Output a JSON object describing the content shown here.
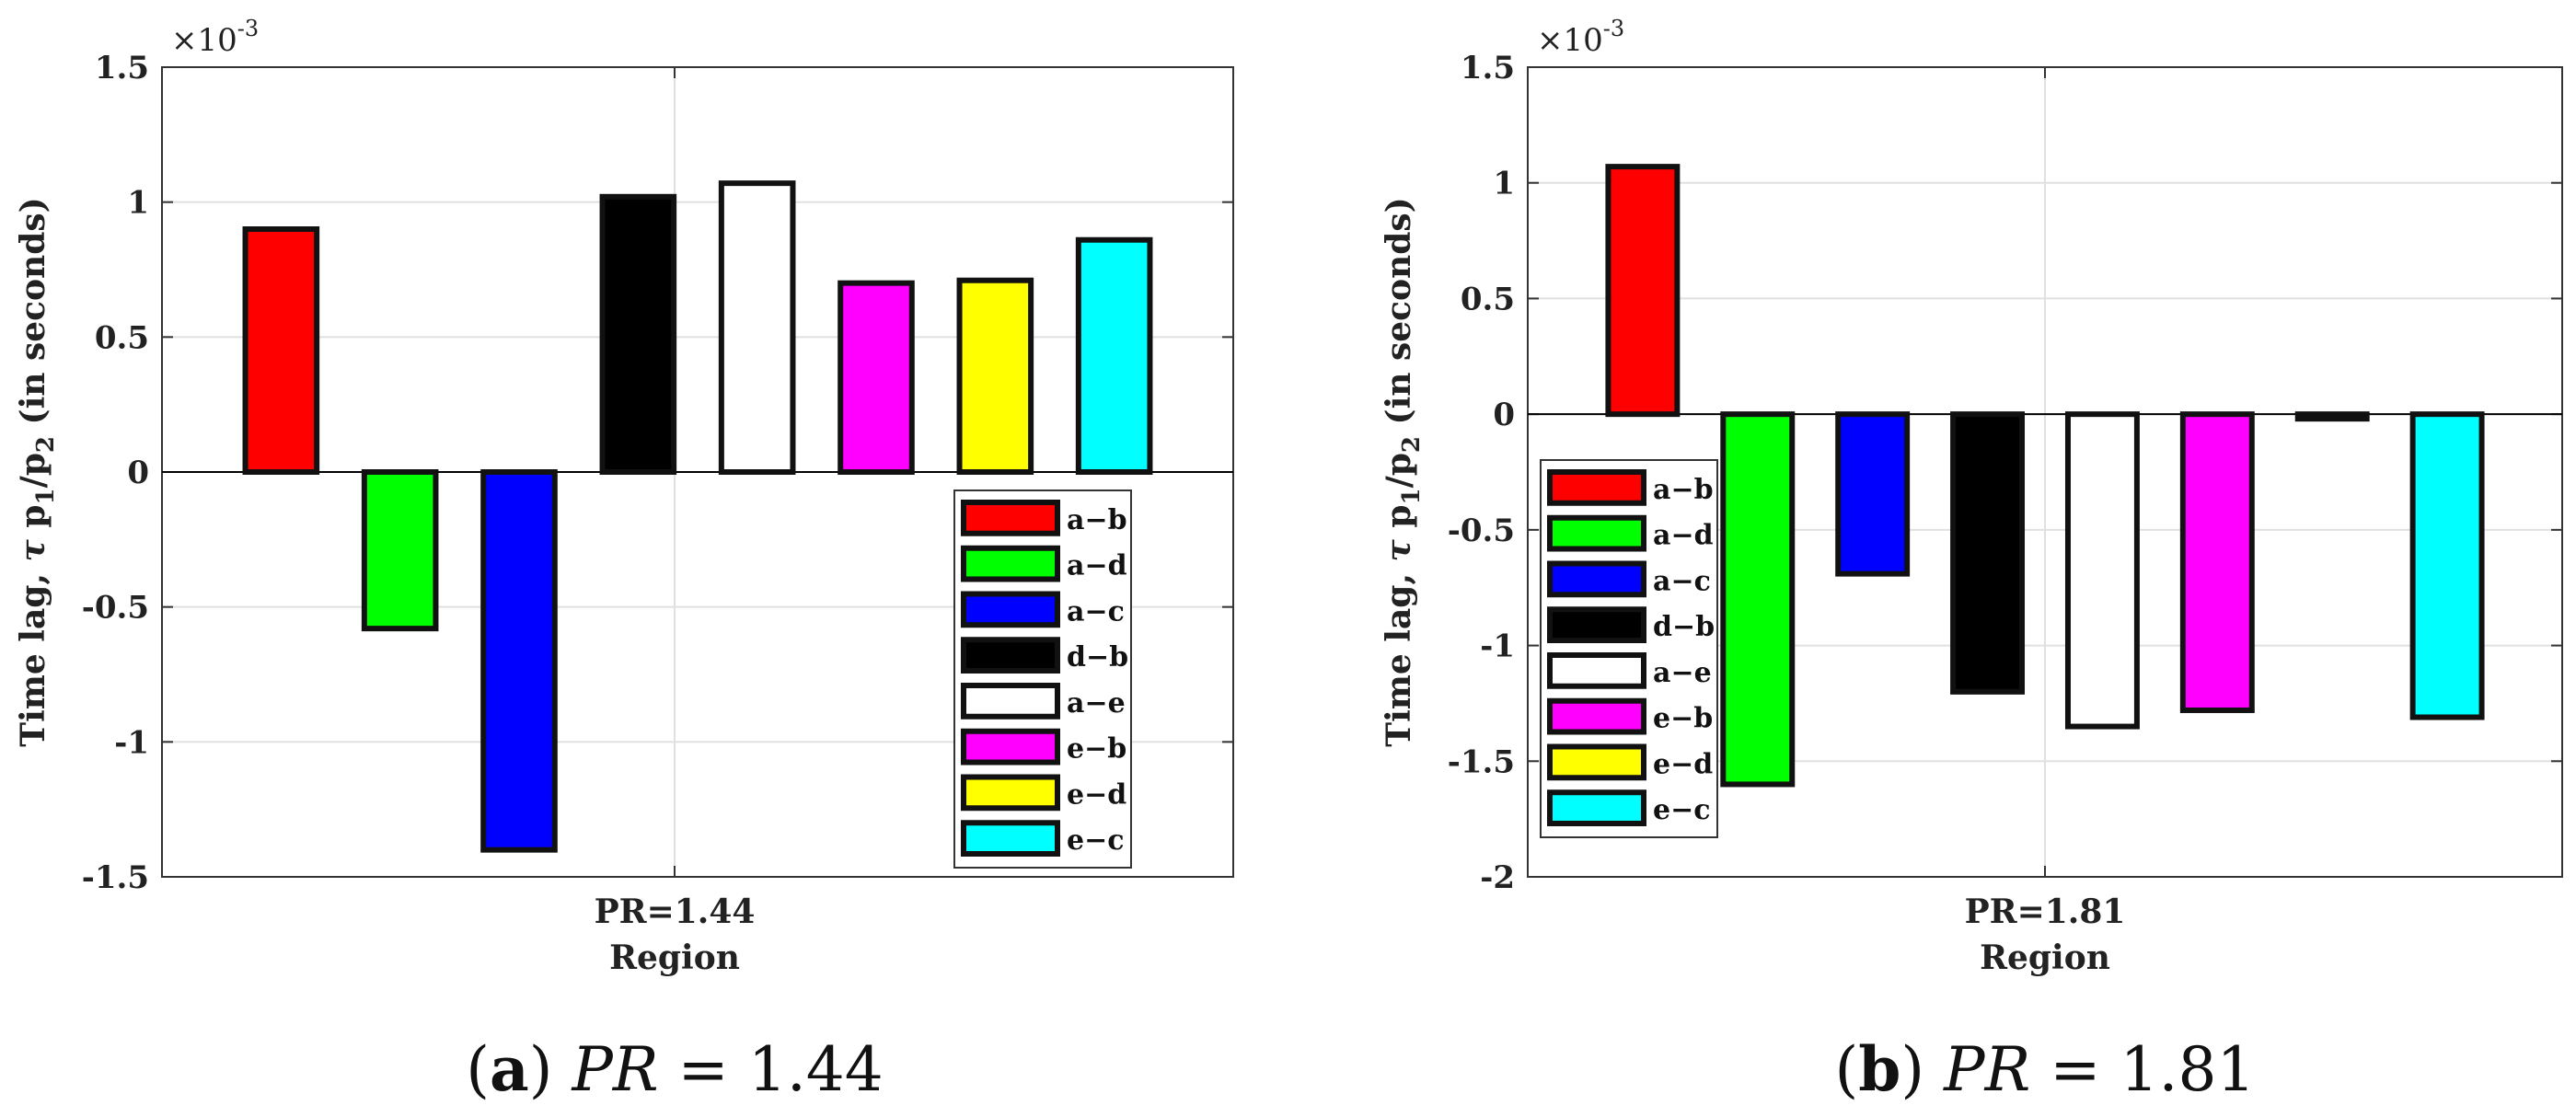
{
  "chart_data": [
    {
      "type": "bar",
      "panel": "a",
      "categories": [
        "a−b",
        "a−d",
        "a−c",
        "d−b",
        "a−e",
        "e−b",
        "e−d",
        "e−c"
      ],
      "values": [
        0.0009,
        -0.00058,
        -0.0014,
        0.00102,
        0.00107,
        0.0007,
        0.00071,
        0.00086
      ],
      "colors": [
        "#ff0000",
        "#00ff00",
        "#0000ff",
        "#000000",
        "#ffffff",
        "#ff00ff",
        "#ffff00",
        "#00ffff"
      ],
      "ylim": [
        -0.0015,
        0.0015
      ],
      "yticks": [
        -0.0015,
        -0.001,
        -0.0005,
        0,
        0.0005,
        0.001,
        0.0015
      ],
      "ytick_labels": [
        "-1.5",
        "-1",
        "-0.5",
        "0",
        "0.5",
        "1",
        "1.5"
      ],
      "multiplier": "×10",
      "multiplier_exp": "-3",
      "ylabel_prefix": "Time lag, ",
      "ylabel_tau": "τ",
      "ylabel_mid": " p",
      "ylabel_sub1": "1",
      "ylabel_slash": "/p",
      "ylabel_sub2": "2",
      "ylabel_suffix": " (in seconds)",
      "xtick_label": "PR=1.44",
      "xlabel": "Region",
      "legend_location": "bottom-right",
      "caption_letter": "a",
      "caption_var": "PR",
      "caption_rest": " = 1.44"
    },
    {
      "type": "bar",
      "panel": "b",
      "categories": [
        "a−b",
        "a−d",
        "a−c",
        "d−b",
        "a−e",
        "e−b",
        "e−d",
        "e−c"
      ],
      "values": [
        0.00107,
        -0.0016,
        -0.00069,
        -0.0012,
        -0.00135,
        -0.00128,
        -2e-05,
        -0.00131
      ],
      "colors": [
        "#ff0000",
        "#00ff00",
        "#0000ff",
        "#000000",
        "#ffffff",
        "#ff00ff",
        "#ffff00",
        "#00ffff"
      ],
      "ylim": [
        -0.002,
        0.0015
      ],
      "yticks": [
        -0.002,
        -0.0015,
        -0.001,
        -0.0005,
        0,
        0.0005,
        0.001,
        0.0015
      ],
      "ytick_labels": [
        "-2",
        "-1.5",
        "-1",
        "-0.5",
        "0",
        "0.5",
        "1",
        "1.5"
      ],
      "multiplier": "×10",
      "multiplier_exp": "-3",
      "ylabel_prefix": "Time lag, ",
      "ylabel_tau": "τ",
      "ylabel_mid": " p",
      "ylabel_sub1": "1",
      "ylabel_slash": "/p",
      "ylabel_sub2": "2",
      "ylabel_suffix": " (in seconds)",
      "xtick_label": "PR=1.81",
      "xlabel": "Region",
      "legend_location": "left",
      "caption_letter": "b",
      "caption_var": "PR",
      "caption_rest": " = 1.81"
    }
  ]
}
